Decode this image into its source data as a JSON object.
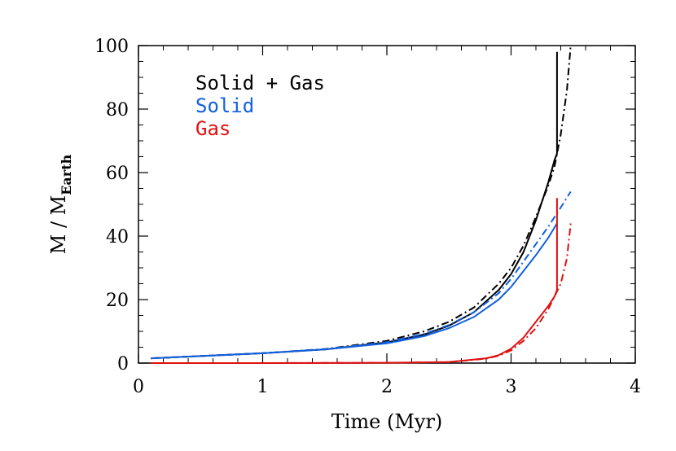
{
  "chart_data": {
    "type": "line",
    "xlabel": "Time (Myr)",
    "ylabel_main": "M  /  M",
    "ylabel_sub": "Earth",
    "xlim": [
      0,
      4
    ],
    "ylim": [
      0,
      100
    ],
    "xticks": [
      "0",
      "1",
      "2",
      "3",
      "4"
    ],
    "yticks": [
      "0",
      "20",
      "40",
      "60",
      "80",
      "100"
    ],
    "grid": false,
    "legend_placement": "top-left",
    "legend": [
      {
        "label": "Solid + Gas",
        "color": "#000000"
      },
      {
        "label": "Solid",
        "color": "#1060e0"
      },
      {
        "label": "Gas",
        "color": "#e01010"
      }
    ],
    "series": [
      {
        "color": "#000000",
        "style": "solid",
        "x": [
          0.1,
          0.5,
          1.0,
          1.5,
          2.0,
          2.3,
          2.5,
          2.7,
          2.9,
          3.0,
          3.1,
          3.2,
          3.3,
          3.35,
          3.37,
          3.37
        ],
        "y": [
          1.5,
          2.2,
          3.1,
          4.3,
          6.5,
          9.0,
          11.8,
          16.0,
          23.0,
          28.0,
          35.0,
          45.0,
          57.0,
          64.0,
          66.0,
          98.0
        ]
      },
      {
        "color": "#000000",
        "style": "dashdot",
        "x": [
          0.1,
          0.5,
          1.0,
          1.5,
          2.0,
          2.3,
          2.5,
          2.7,
          2.9,
          3.0,
          3.1,
          3.2,
          3.3,
          3.35,
          3.4,
          3.45,
          3.48
        ],
        "y": [
          1.5,
          2.2,
          3.1,
          4.4,
          7.0,
          10.0,
          13.0,
          17.5,
          25.0,
          30.0,
          37.0,
          46.0,
          56.0,
          62.0,
          72.0,
          86.0,
          100.0
        ]
      },
      {
        "color": "#1060e0",
        "style": "solid",
        "x": [
          0.1,
          0.5,
          1.0,
          1.5,
          2.0,
          2.3,
          2.5,
          2.7,
          2.9,
          3.0,
          3.1,
          3.2,
          3.3,
          3.37
        ],
        "y": [
          1.5,
          2.2,
          3.1,
          4.3,
          6.2,
          8.5,
          11.0,
          14.5,
          20.0,
          24.0,
          29.0,
          34.0,
          39.5,
          44.0
        ]
      },
      {
        "color": "#1060e0",
        "style": "dashdot",
        "x": [
          0.1,
          0.5,
          1.0,
          1.5,
          2.0,
          2.3,
          2.5,
          2.7,
          2.9,
          3.0,
          3.1,
          3.2,
          3.3,
          3.4,
          3.48
        ],
        "y": [
          1.5,
          2.2,
          3.1,
          4.4,
          6.6,
          9.2,
          12.0,
          16.0,
          22.0,
          26.5,
          32.0,
          37.5,
          43.0,
          49.0,
          54.0
        ]
      },
      {
        "color": "#e01010",
        "style": "solid",
        "x": [
          0.1,
          1.0,
          2.0,
          2.5,
          2.8,
          2.9,
          3.0,
          3.1,
          3.2,
          3.3,
          3.35,
          3.37,
          3.37
        ],
        "y": [
          0.0,
          0.0,
          0.1,
          0.3,
          1.5,
          2.5,
          4.5,
          8.0,
          13.0,
          18.0,
          21.0,
          23.0,
          52.0
        ]
      },
      {
        "color": "#e01010",
        "style": "dashdot",
        "x": [
          0.1,
          1.0,
          2.0,
          2.5,
          2.8,
          2.9,
          3.0,
          3.1,
          3.2,
          3.3,
          3.4,
          3.45,
          3.48
        ],
        "y": [
          0.0,
          0.0,
          0.1,
          0.3,
          1.4,
          2.3,
          4.0,
          7.0,
          11.0,
          17.0,
          25.0,
          33.0,
          44.0
        ]
      }
    ]
  }
}
